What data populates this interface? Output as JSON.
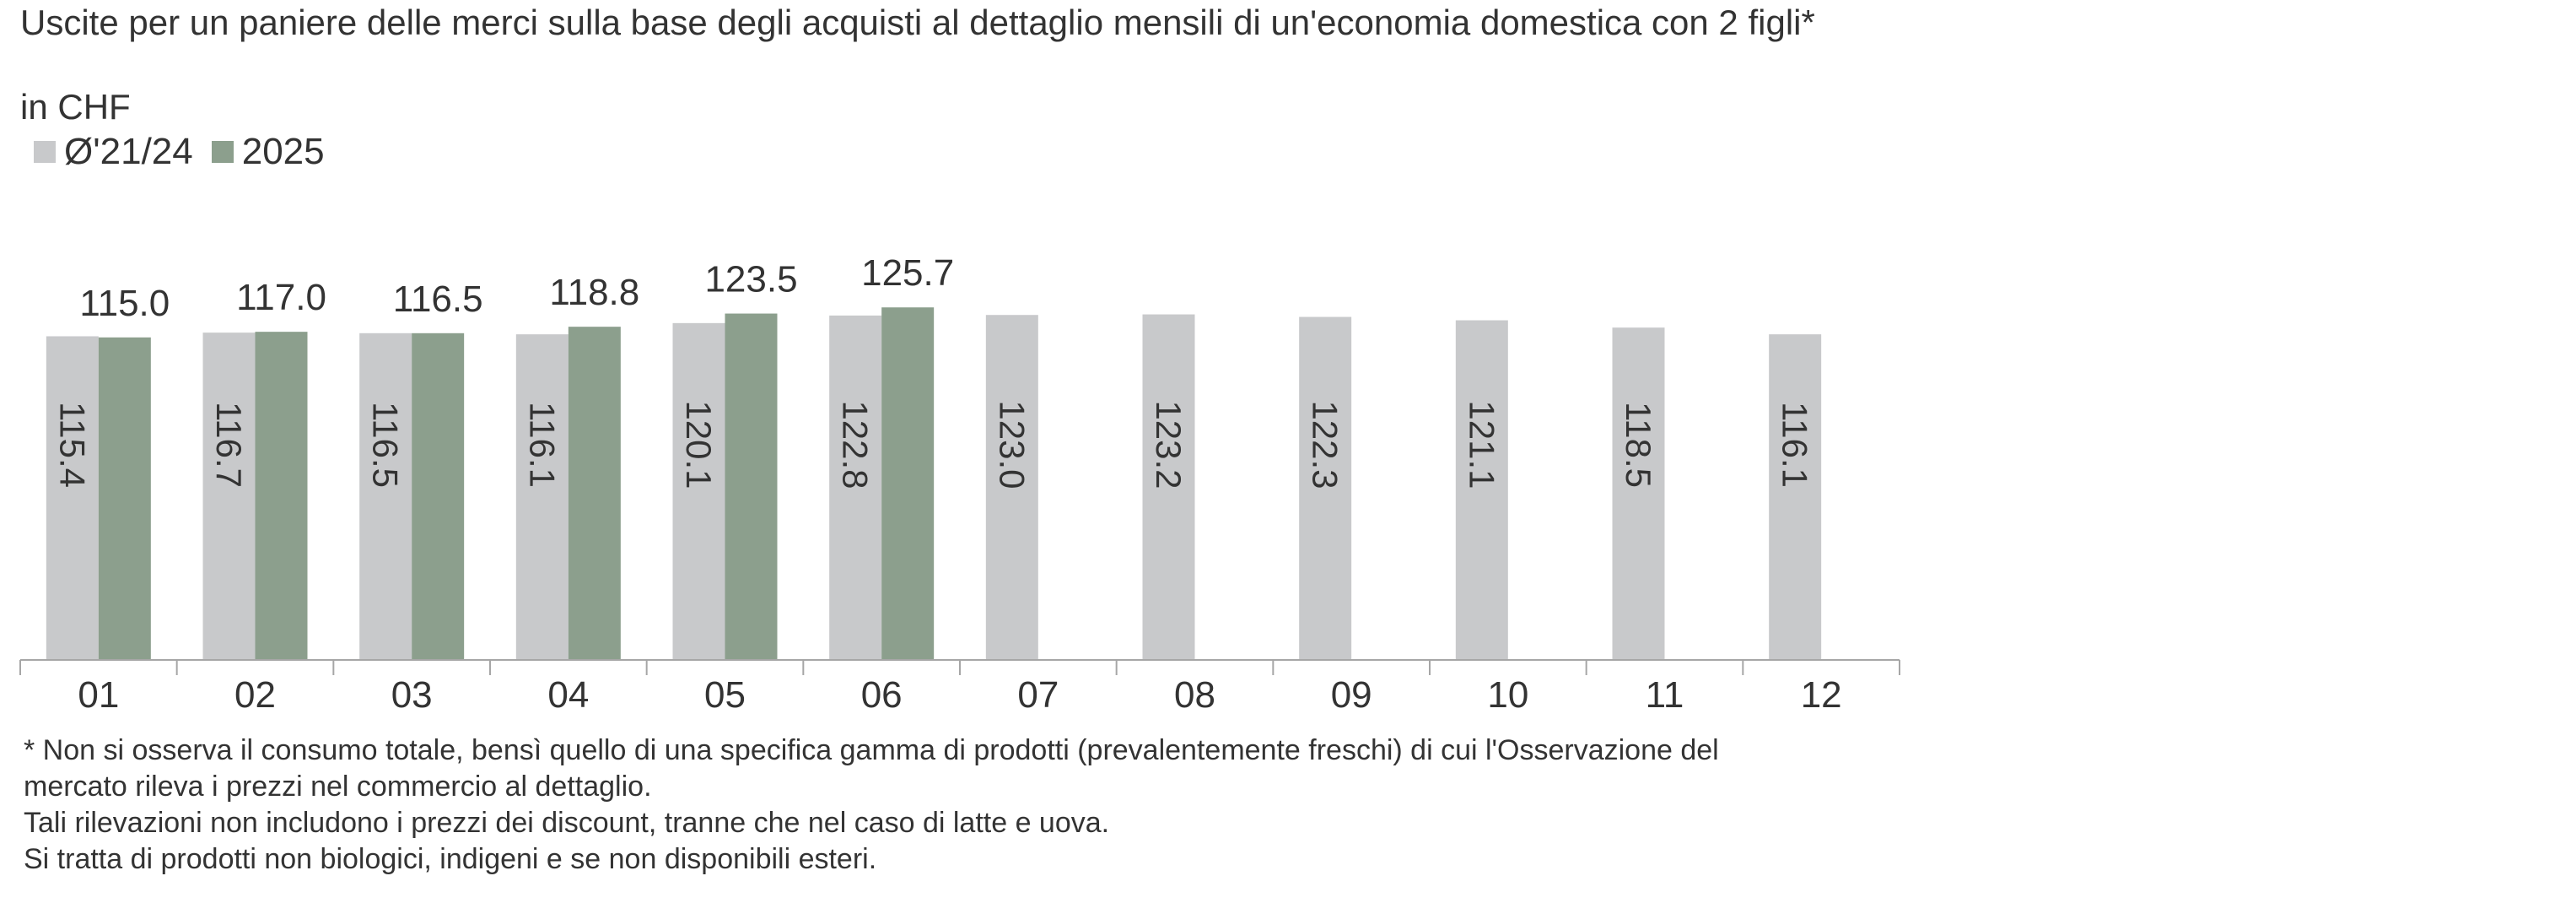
{
  "chart_data": {
    "type": "bar",
    "title": "Uscite per un paniere delle merci sulla base degli acquisti al dettaglio mensili di un'economia domestica con 2 figli*",
    "unit_label": "in CHF",
    "categories": [
      "01",
      "02",
      "03",
      "04",
      "05",
      "06",
      "07",
      "08",
      "09",
      "10",
      "11",
      "12"
    ],
    "series": [
      {
        "name": "Ø'21/24",
        "color": "#c8c9cb",
        "values": [
          115.4,
          116.7,
          116.5,
          116.1,
          120.1,
          122.8,
          123.0,
          123.2,
          122.3,
          121.1,
          118.5,
          116.1
        ],
        "value_labels": [
          "115.4",
          "116.7",
          "116.5",
          "116.1",
          "120.1",
          "122.8",
          "123.0",
          "123.2",
          "122.3",
          "121.1",
          "118.5",
          "116.1"
        ]
      },
      {
        "name": "2025",
        "color": "#8c9f8d",
        "values": [
          115.0,
          117.0,
          116.5,
          118.8,
          123.5,
          125.7,
          null,
          null,
          null,
          null,
          null,
          null
        ],
        "value_labels": [
          "115.0",
          "117.0",
          "116.5",
          "118.8",
          "123.5",
          "125.7",
          "",
          "",
          "",
          "",
          "",
          ""
        ]
      }
    ],
    "ylim": [
      0,
      130
    ],
    "grid": false,
    "legend_position": "top-left",
    "axis_color": "#a6a6a6"
  },
  "footnote": {
    "line1": "* Non si osserva il consumo totale, bensì quello di una specifica gamma di prodotti  (prevalentemente freschi) di cui l'Osservazione del",
    "line2": "mercato rileva i prezzi nel commercio al dettaglio.",
    "line3": "Tali rilevazioni non includono i prezzi dei discount, tranne che nel caso di latte e uova.",
    "line4": "Si tratta di prodotti non biologici, indigeni e se non disponibili esteri."
  }
}
